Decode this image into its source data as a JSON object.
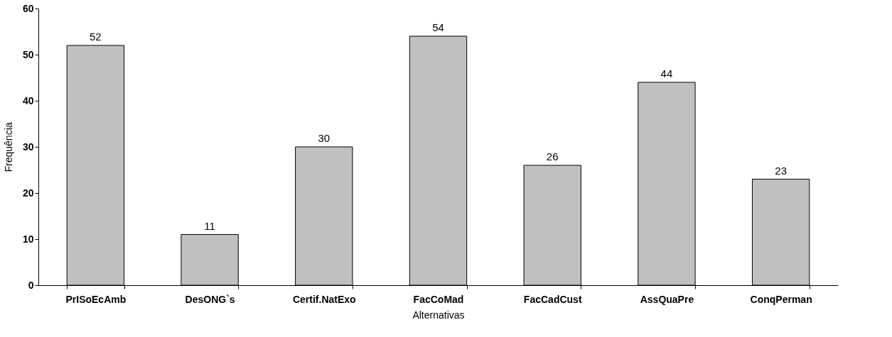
{
  "chart_data": {
    "type": "bar",
    "xlabel": "Alternativas",
    "ylabel": "Frequência",
    "categories": [
      "PrISoEcAmb",
      "DesONG`s",
      "Certif.NatExo",
      "FacCoMad",
      "FacCadCust",
      "AssQuaPre",
      "ConqPerman"
    ],
    "values": [
      52,
      11,
      30,
      54,
      26,
      44,
      23
    ],
    "color": "#c0c0c0",
    "ylim": [
      0,
      60
    ],
    "yticks": [
      0,
      10,
      20,
      30,
      40,
      50,
      60
    ],
    "grid": false,
    "data_labels": true
  }
}
